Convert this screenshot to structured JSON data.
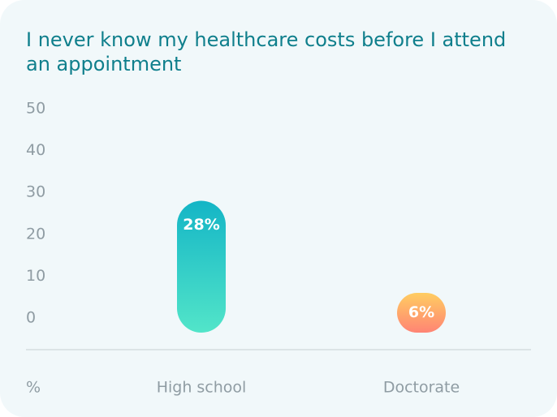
{
  "chart_data": {
    "type": "bar",
    "title": "I never know my healthcare costs before I attend an appointment",
    "y_label": "%",
    "categories": [
      "High school",
      "Doctorate"
    ],
    "values": [
      28,
      6
    ],
    "value_labels": [
      "28%",
      "6%"
    ],
    "colors": [
      [
        "#14b5c6",
        "#52e5c9"
      ],
      [
        "#ffcd61",
        "#ff8474"
      ]
    ],
    "ylim": [
      0,
      50
    ],
    "yticks": [
      0,
      10,
      20,
      30,
      40,
      50
    ]
  }
}
